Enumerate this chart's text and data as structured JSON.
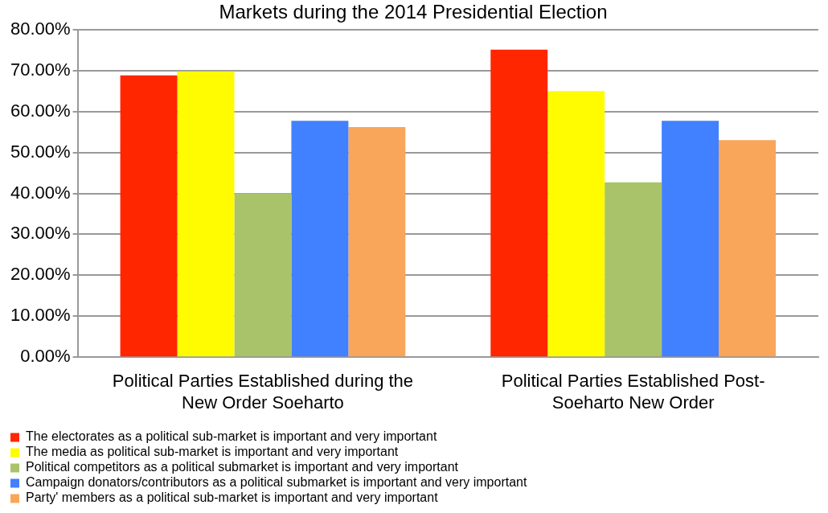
{
  "chart_data": {
    "type": "bar",
    "title": "Markets during the 2014 Presidential Election",
    "categories": [
      "Political Parties Established during the New Order Soeharto",
      "Political Parties Established Post-Soeharto New Order"
    ],
    "series": [
      {
        "name": "The electorates as a political sub-market is important and very important",
        "color": "#ff2600",
        "values": [
          68.8,
          75.1
        ]
      },
      {
        "name": "The media as political sub-market is important and very important",
        "color": "#fffb00",
        "values": [
          69.8,
          65.0
        ]
      },
      {
        "name": "Political competitors as a political submarket is important and very important",
        "color": "#a9c36a",
        "values": [
          40.0,
          42.7
        ]
      },
      {
        "name": "Campaign donators/contributors as a political submarket is important and very important",
        "color": "#4180ff",
        "values": [
          57.7,
          57.7
        ]
      },
      {
        "name": "Party' members as a political sub-market is important and very important",
        "color": "#f9a65a",
        "values": [
          56.2,
          53.0
        ]
      }
    ],
    "ylim": [
      0,
      80
    ],
    "yticks": [
      {
        "value": 0,
        "label": "0.00%"
      },
      {
        "value": 10,
        "label": "10.00%"
      },
      {
        "value": 20,
        "label": "20.00%"
      },
      {
        "value": 30,
        "label": "30.00%"
      },
      {
        "value": 40,
        "label": "40.00%"
      },
      {
        "value": 50,
        "label": "50.00%"
      },
      {
        "value": 60,
        "label": "60.00%"
      },
      {
        "value": 70,
        "label": "70.00%"
      },
      {
        "value": 80,
        "label": "80.00%"
      }
    ],
    "grid": "y",
    "legend": "bottom left"
  }
}
